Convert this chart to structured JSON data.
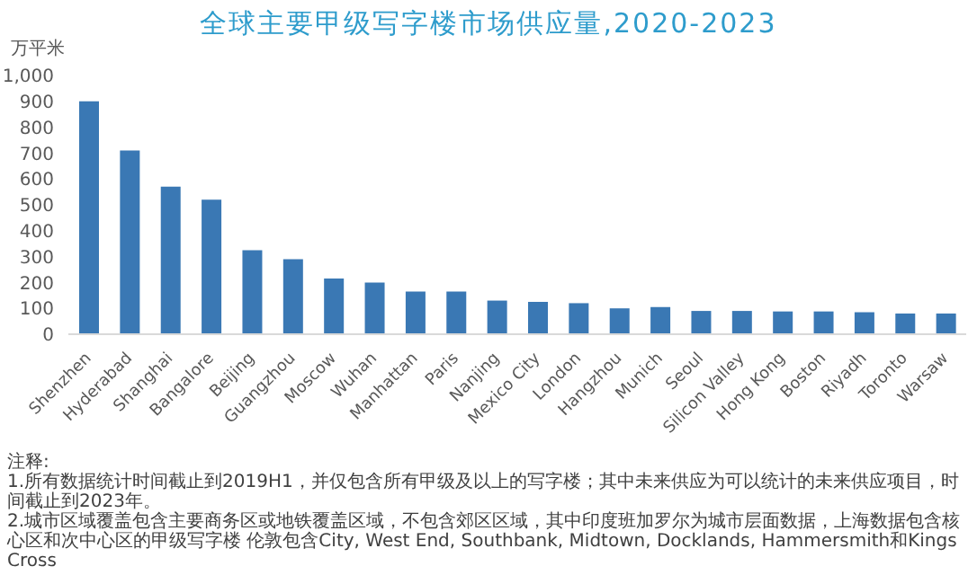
{
  "chart_data": {
    "type": "bar",
    "title": "全球主要甲级写字楼市场供应量,2020-2023",
    "ylabel": "万平米",
    "categories": [
      "Shenzhen",
      "Hyderabad",
      "Shanghai",
      "Bangalore",
      "Beijing",
      "Guangzhou",
      "Moscow",
      "Wuhan",
      "Manhattan",
      "Paris",
      "Nanjing",
      "Mexico City",
      "London",
      "Hangzhou",
      "Munich",
      "Seoul",
      "Silicon Valley",
      "Hong Kong",
      "Boston",
      "Riyadh",
      "Toronto",
      "Warsaw"
    ],
    "values": [
      900,
      710,
      570,
      520,
      325,
      290,
      215,
      200,
      165,
      165,
      130,
      125,
      120,
      100,
      105,
      90,
      90,
      88,
      88,
      85,
      80,
      80
    ],
    "color": "#3a78b4",
    "ylim": [
      0,
      1000
    ],
    "yticks": [
      0,
      {
        "value": 100,
        "label": "100"
      },
      200,
      300,
      400,
      500,
      600,
      700,
      800,
      900,
      {
        "value": 1000,
        "label": "1,000"
      }
    ],
    "grid": false,
    "annotations": [
      "注释:",
      "1.所有数据统计时间截止到2019H1，并仅包含所有甲级及以上的写字楼；其中未来供应为可以统计的未来供应项目，时间截止到2023年。",
      "2.城市区域覆盖包含主要商务区或地铁覆盖区域，不包含郊区区域，其中印度班加罗尔为城市层面数据，上海数据包含核心区和次中心区的甲级写字楼 伦敦包含City, West End, Southbank, Midtown, Docklands, Hammersmith和Kings Cross"
    ]
  }
}
